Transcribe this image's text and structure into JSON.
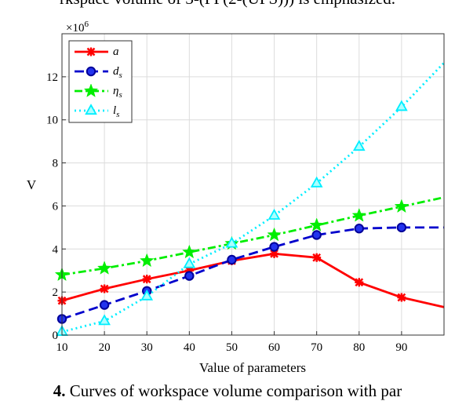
{
  "captions": {
    "top": "rkspace volume of 3-(PP(2-(UPS))) is emphasized.",
    "bottom_bold": "4.",
    "bottom": "Curves of workspace volume comparison with par"
  },
  "chart_data": {
    "type": "line",
    "title": "",
    "xlabel": "Value of parameters",
    "ylabel": "V",
    "exponent_label": "×10",
    "exponent_power": "6",
    "xlim": [
      10,
      100
    ],
    "ylim": [
      0,
      14
    ],
    "x_ticks": [
      "10",
      "20",
      "30",
      "40",
      "50",
      "60",
      "70",
      "80",
      "90"
    ],
    "y_ticks": [
      "0",
      "2",
      "4",
      "6",
      "8",
      "10",
      "12"
    ],
    "grid": true,
    "legend_position": "top-left",
    "series": [
      {
        "name": "a",
        "sub": "",
        "color": "#ff0000",
        "dash": "solid",
        "marker": "x-star",
        "x": [
          10,
          20,
          30,
          40,
          50,
          60,
          70,
          80,
          90,
          100
        ],
        "y": [
          1.6,
          2.15,
          2.6,
          3.0,
          3.45,
          3.78,
          3.6,
          2.45,
          1.75,
          1.3
        ]
      },
      {
        "name": "d",
        "sub": "s",
        "color": "#0000cc",
        "dash": "dashed",
        "marker": "circle",
        "x": [
          10,
          20,
          30,
          40,
          50,
          60,
          70,
          80,
          90,
          100
        ],
        "y": [
          0.75,
          1.4,
          2.05,
          2.75,
          3.5,
          4.1,
          4.65,
          4.95,
          5.0,
          5.0
        ]
      },
      {
        "name": "η",
        "sub": "s",
        "color": "#00ee00",
        "dash": "dashdot",
        "marker": "star",
        "x": [
          10,
          20,
          30,
          40,
          50,
          60,
          70,
          80,
          90,
          100
        ],
        "y": [
          2.8,
          3.1,
          3.45,
          3.85,
          4.25,
          4.65,
          5.1,
          5.55,
          5.97,
          6.4
        ]
      },
      {
        "name": "l",
        "sub": "s",
        "color": "#00eeff",
        "dash": "dotted",
        "marker": "triangle",
        "x": [
          10,
          20,
          30,
          40,
          50,
          60,
          70,
          80,
          90,
          100
        ],
        "y": [
          0.15,
          0.65,
          1.8,
          3.3,
          4.25,
          5.55,
          7.05,
          8.75,
          10.6,
          12.65
        ]
      }
    ]
  }
}
